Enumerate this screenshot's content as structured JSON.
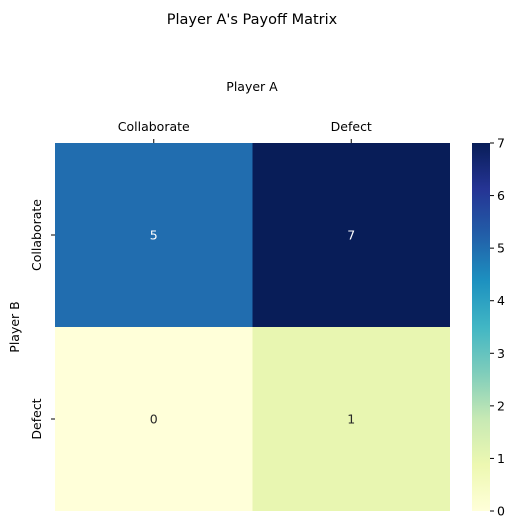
{
  "chart_data": {
    "type": "heatmap",
    "title": "Player A's Payoff Matrix",
    "xlabel": "Player A",
    "ylabel": "Player B",
    "x_categories": [
      "Collaborate",
      "Defect"
    ],
    "y_categories": [
      "Collaborate",
      "Defect"
    ],
    "values": [
      [
        5,
        7
      ],
      [
        0,
        1
      ]
    ],
    "annotations": [
      "5",
      "7",
      "0",
      "1"
    ],
    "x_axis_position": "top",
    "colormap": "YlGnBu",
    "colorbar": {
      "vmin": 0,
      "vmax": 7,
      "ticks": [
        "0",
        "1",
        "2",
        "3",
        "4",
        "5",
        "6",
        "7"
      ]
    },
    "grid": false
  }
}
